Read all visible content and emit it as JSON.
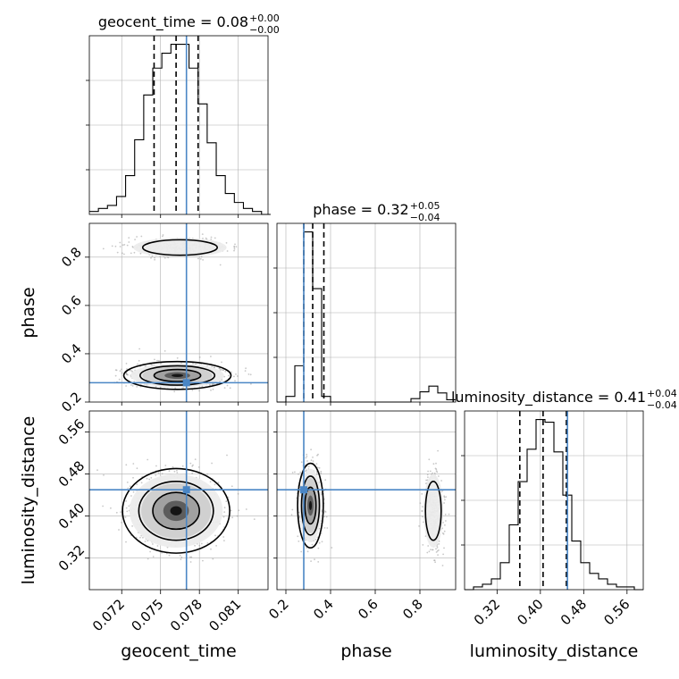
{
  "chart_data": [
    {
      "type": "histogram",
      "panel": "geocent_time",
      "title": "geocent_time = 0.08",
      "title_sup": "+0.00",
      "title_sub": "−0.00",
      "xlim": [
        0.0695,
        0.0833
      ],
      "bins": [
        0.0695,
        0.0702,
        0.0709,
        0.0716,
        0.0723,
        0.073,
        0.0737,
        0.0744,
        0.0751,
        0.0758,
        0.0765,
        0.0772,
        0.0779,
        0.0786,
        0.0793,
        0.08,
        0.0807,
        0.0814,
        0.0821,
        0.0828,
        0.0835
      ],
      "counts": [
        1,
        2,
        3,
        6,
        13,
        25,
        40,
        49,
        54,
        57,
        57,
        49,
        37,
        24,
        13,
        7,
        4,
        2,
        1,
        0
      ],
      "quantiles": [
        0.0745,
        0.0762,
        0.0779
      ],
      "truth": 0.077
    },
    {
      "type": "histogram",
      "panel": "phase",
      "title": "phase = 0.32",
      "title_sup": "+0.05",
      "title_sub": "−0.04",
      "xlim": [
        0.16,
        0.96
      ],
      "bins": [
        0.16,
        0.2,
        0.24,
        0.28,
        0.32,
        0.36,
        0.4,
        0.44,
        0.48,
        0.52,
        0.56,
        0.6,
        0.64,
        0.68,
        0.72,
        0.76,
        0.8,
        0.84,
        0.88,
        0.92,
        0.96
      ],
      "counts": [
        0,
        5,
        32,
        150,
        100,
        5,
        0,
        0,
        0,
        0,
        0,
        0,
        0,
        0,
        0,
        3,
        9,
        14,
        8,
        2
      ],
      "quantiles": [
        0.28,
        0.32,
        0.37
      ],
      "truth": 0.28
    },
    {
      "type": "histogram",
      "panel": "luminosity_distance",
      "title": "luminosity_distance = 0.41",
      "title_sup": "+0.04",
      "title_sub": "−0.04",
      "xlim": [
        0.26,
        0.59
      ],
      "bins": [
        0.26,
        0.2765,
        0.293,
        0.3095,
        0.326,
        0.3425,
        0.359,
        0.3755,
        0.392,
        0.4085,
        0.425,
        0.4415,
        0.458,
        0.4745,
        0.491,
        0.5075,
        0.524,
        0.5405,
        0.557,
        0.5735,
        0.59
      ],
      "counts": [
        0,
        1,
        2,
        4,
        10,
        24,
        40,
        52,
        63,
        62,
        51,
        35,
        18,
        10,
        6,
        4,
        2,
        1,
        1,
        0
      ],
      "quantiles": [
        0.362,
        0.405,
        0.448
      ],
      "truth": 0.45
    },
    {
      "type": "scatter",
      "panel": "phase vs geocent_time",
      "x": "geocent_time",
      "y": "phase",
      "xlim": [
        0.0695,
        0.0833
      ],
      "ylim": [
        0.2,
        0.94
      ],
      "ylabel": "phase",
      "clusters": [
        {
          "cx": 0.0763,
          "cy": 0.31,
          "sx": 0.0018,
          "sy": 0.025
        },
        {
          "cx": 0.0765,
          "cy": 0.84,
          "sx": 0.0018,
          "sy": 0.02
        }
      ],
      "truth": {
        "x": 0.077,
        "y": 0.28
      }
    },
    {
      "type": "scatter",
      "panel": "luminosity_distance vs geocent_time",
      "x": "geocent_time",
      "y": "luminosity_distance",
      "xlim": [
        0.0695,
        0.0833
      ],
      "ylim": [
        0.26,
        0.6
      ],
      "xlabel": "geocent_time",
      "ylabel": "luminosity_distance",
      "clusters": [
        {
          "cx": 0.0762,
          "cy": 0.41,
          "sx": 0.0018,
          "sy": 0.035
        }
      ],
      "truth": {
        "x": 0.077,
        "y": 0.45
      }
    },
    {
      "type": "scatter",
      "panel": "luminosity_distance vs phase",
      "x": "phase",
      "y": "luminosity_distance",
      "xlim": [
        0.16,
        0.96
      ],
      "ylim": [
        0.26,
        0.6
      ],
      "xlabel": "phase",
      "clusters": [
        {
          "cx": 0.31,
          "cy": 0.42,
          "sx": 0.025,
          "sy": 0.035
        },
        {
          "cx": 0.86,
          "cy": 0.41,
          "sx": 0.022,
          "sy": 0.035
        }
      ],
      "truth": {
        "x": 0.28,
        "y": 0.45
      }
    }
  ],
  "axes": {
    "geocent_time": {
      "label": "geocent_time",
      "ticks": [
        0.072,
        0.075,
        0.078,
        0.081
      ],
      "tick_labels": [
        "0.072",
        "0.075",
        "0.078",
        "0.081"
      ]
    },
    "phase": {
      "label": "phase",
      "ticks": [
        0.2,
        0.4,
        0.6,
        0.8
      ],
      "tick_labels": [
        "0.2",
        "0.4",
        "0.6",
        "0.8"
      ]
    },
    "luminosity_distance": {
      "label": "luminosity_distance",
      "ticks": [
        0.32,
        0.4,
        0.48,
        0.56
      ],
      "tick_labels": [
        "0.32",
        "0.40",
        "0.48",
        "0.56"
      ]
    }
  },
  "colors": {
    "truth": "#4a86c5",
    "hist": "#000000",
    "grid": "#b0b0b0",
    "points": "#9a9a9a"
  }
}
